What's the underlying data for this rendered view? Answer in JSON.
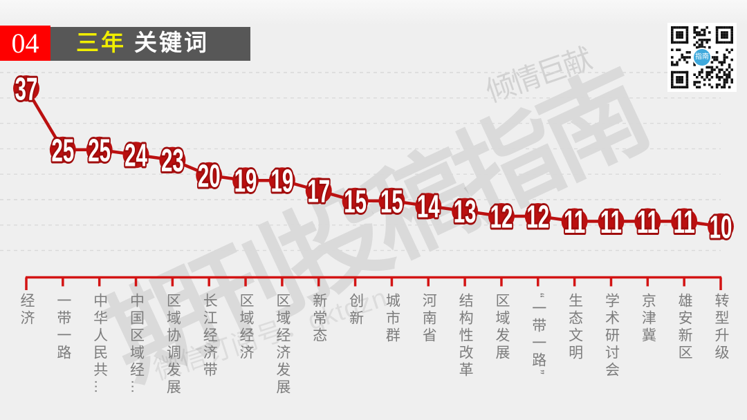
{
  "header": {
    "number": "04",
    "title_highlight": "三年",
    "title_rest": "关键词"
  },
  "watermarks": {
    "big": "期刊投稿指南",
    "promo": "倾情巨献",
    "wechat": "微信订阅号：qktgzn"
  },
  "qr": {
    "center_label": "指南"
  },
  "colors": {
    "background": "#efefef",
    "point_red": "#bb1010",
    "number_outline": "#a00d0d",
    "axis_red": "#d31414",
    "grid_gray": "#d9d9d9",
    "label_gray": "#7c7c7c",
    "header_red": "#fe0000",
    "header_bar_gray": "#575757",
    "title_yellow": "#f0ee00",
    "qr_blue": "#3fa9dc"
  },
  "chart_data": {
    "type": "line",
    "title": "三年 关键词",
    "categories": [
      "经济",
      "一带一路",
      "中华人民共…",
      "中国区域经…",
      "区域协调发展",
      "长江经济带",
      "区域经济",
      "区域经济发展",
      "新常态",
      "创新",
      "城市群",
      "河南省",
      "结构性改革",
      "区域发展",
      "“一带一路”",
      "生态文明",
      "学术研讨会",
      "京津冀",
      "雄安新区",
      "转型升级"
    ],
    "values": [
      37,
      25,
      25,
      24,
      23,
      20,
      19,
      19,
      17,
      15,
      15,
      14,
      13,
      12,
      12,
      11,
      11,
      11,
      11,
      10
    ],
    "xlabel": "",
    "ylabel": "",
    "ylim": [
      10,
      37
    ],
    "grid": true,
    "legend": "none",
    "point_labels": "inside-marker"
  }
}
